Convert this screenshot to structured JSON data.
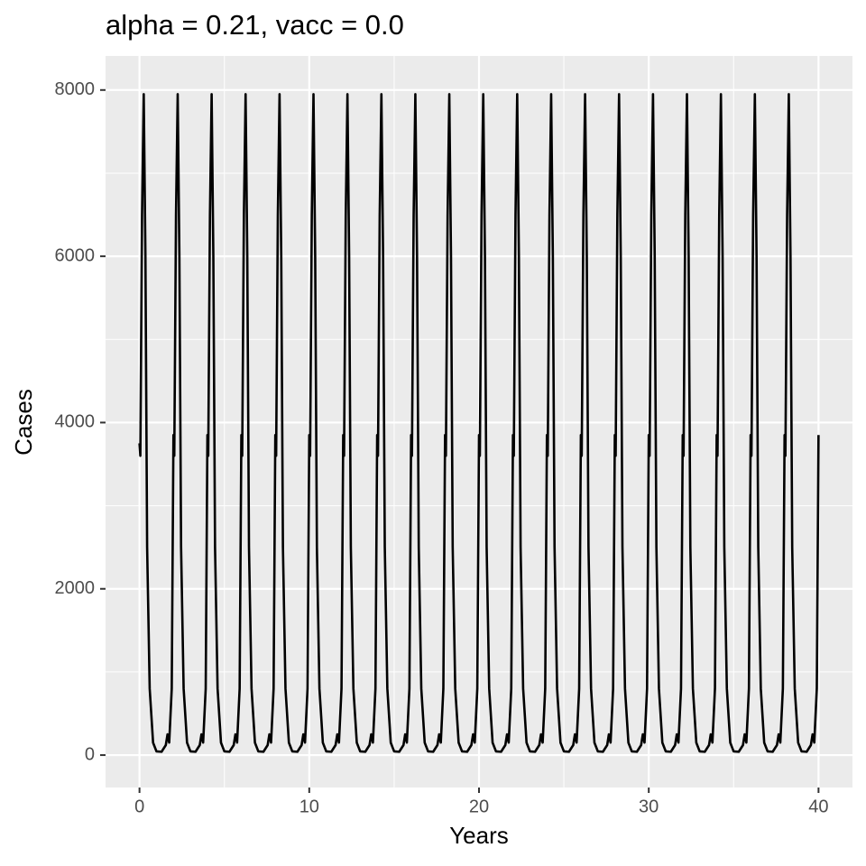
{
  "chart_data": {
    "type": "line",
    "title": "alpha = 0.21, vacc = 0.0",
    "x_label": "Years",
    "y_label": "Cases",
    "xlim": [
      -2,
      42
    ],
    "xticks": [
      0,
      10,
      20,
      30,
      40
    ],
    "ylim": [
      -390,
      8410
    ],
    "yticks": [
      0,
      2000,
      4000,
      6000,
      8000
    ],
    "grid": true,
    "minor_grid": true,
    "series": [
      {
        "color": "#000000",
        "x": [
          0,
          0.05,
          0.15,
          0.25,
          0.35,
          0.45,
          0.6,
          0.8,
          1,
          1.3,
          1.55,
          1.65,
          1.75,
          1.9,
          2,
          2.05,
          2.15,
          2.25,
          2.35,
          2.45,
          2.6,
          2.8,
          3,
          3.3,
          3.55,
          3.65,
          3.75,
          3.9,
          4,
          4.05,
          4.15,
          4.25,
          4.35,
          4.45,
          4.6,
          4.8,
          5,
          5.3,
          5.55,
          5.65,
          5.75,
          5.9,
          6,
          6.05,
          6.15,
          6.25,
          6.35,
          6.45,
          6.6,
          6.8,
          7,
          7.3,
          7.55,
          7.65,
          7.75,
          7.9,
          8,
          8.05,
          8.15,
          8.25,
          8.35,
          8.45,
          8.6,
          8.8,
          9,
          9.3,
          9.55,
          9.65,
          9.75,
          9.9,
          10,
          10.05,
          10.15,
          10.25,
          10.35,
          10.45,
          10.6,
          10.8,
          11,
          11.3,
          11.55,
          11.65,
          11.75,
          11.9,
          12,
          12.05,
          12.15,
          12.25,
          12.35,
          12.45,
          12.6,
          12.8,
          13,
          13.3,
          13.55,
          13.65,
          13.75,
          13.9,
          14,
          14.05,
          14.15,
          14.25,
          14.35,
          14.45,
          14.6,
          14.8,
          15,
          15.3,
          15.55,
          15.65,
          15.75,
          15.9,
          16,
          16.05,
          16.15,
          16.25,
          16.35,
          16.45,
          16.6,
          16.8,
          17,
          17.3,
          17.55,
          17.65,
          17.75,
          17.9,
          18,
          18.05,
          18.15,
          18.25,
          18.35,
          18.45,
          18.6,
          18.8,
          19,
          19.3,
          19.55,
          19.65,
          19.75,
          19.9,
          20,
          20.05,
          20.15,
          20.25,
          20.35,
          20.45,
          20.6,
          20.8,
          21,
          21.3,
          21.55,
          21.65,
          21.75,
          21.9,
          22,
          22.05,
          22.15,
          22.25,
          22.35,
          22.45,
          22.6,
          22.8,
          23,
          23.3,
          23.55,
          23.65,
          23.75,
          23.9,
          24,
          24.05,
          24.15,
          24.25,
          24.35,
          24.45,
          24.6,
          24.8,
          25,
          25.3,
          25.55,
          25.65,
          25.75,
          25.9,
          26,
          26.05,
          26.15,
          26.25,
          26.35,
          26.45,
          26.6,
          26.8,
          27,
          27.3,
          27.55,
          27.65,
          27.75,
          27.9,
          28,
          28.05,
          28.15,
          28.25,
          28.35,
          28.45,
          28.6,
          28.8,
          29,
          29.3,
          29.55,
          29.65,
          29.75,
          29.9,
          30,
          30.05,
          30.15,
          30.25,
          30.35,
          30.45,
          30.6,
          30.8,
          31,
          31.3,
          31.55,
          31.65,
          31.75,
          31.9,
          32,
          32.05,
          32.15,
          32.25,
          32.35,
          32.45,
          32.6,
          32.8,
          33,
          33.3,
          33.55,
          33.65,
          33.75,
          33.9,
          34,
          34.05,
          34.15,
          34.25,
          34.35,
          34.45,
          34.6,
          34.8,
          35,
          35.3,
          35.55,
          35.65,
          35.75,
          35.9,
          36,
          36.05,
          36.15,
          36.25,
          36.35,
          36.45,
          36.6,
          36.8,
          37,
          37.3,
          37.55,
          37.65,
          37.75,
          37.9,
          38,
          38.05,
          38.15,
          38.25,
          38.35,
          38.45,
          38.6,
          38.8,
          39,
          39.3,
          39.55,
          39.65,
          39.75,
          39.9,
          40
        ],
        "values": [
          3750,
          3600,
          6500,
          7950,
          6000,
          2500,
          800,
          150,
          45,
          40,
          120,
          250,
          150,
          800,
          3850,
          3600,
          6500,
          7950,
          6000,
          2500,
          800,
          150,
          45,
          40,
          120,
          250,
          150,
          800,
          3850,
          3600,
          6500,
          7950,
          6000,
          2500,
          800,
          150,
          45,
          40,
          120,
          250,
          150,
          800,
          3850,
          3600,
          6500,
          7950,
          6000,
          2500,
          800,
          150,
          45,
          40,
          120,
          250,
          150,
          800,
          3850,
          3600,
          6500,
          7950,
          6000,
          2500,
          800,
          150,
          45,
          40,
          120,
          250,
          150,
          800,
          3850,
          3600,
          6500,
          7950,
          6000,
          2500,
          800,
          150,
          45,
          40,
          120,
          250,
          150,
          800,
          3850,
          3600,
          6500,
          7950,
          6000,
          2500,
          800,
          150,
          45,
          40,
          120,
          250,
          150,
          800,
          3850,
          3600,
          6500,
          7950,
          6000,
          2500,
          800,
          150,
          45,
          40,
          120,
          250,
          150,
          800,
          3850,
          3600,
          6500,
          7950,
          6000,
          2500,
          800,
          150,
          45,
          40,
          120,
          250,
          150,
          800,
          3850,
          3600,
          6500,
          7950,
          6000,
          2500,
          800,
          150,
          45,
          40,
          120,
          250,
          150,
          800,
          3850,
          3600,
          6500,
          7950,
          6000,
          2500,
          800,
          150,
          45,
          40,
          120,
          250,
          150,
          800,
          3850,
          3600,
          6500,
          7950,
          6000,
          2500,
          800,
          150,
          45,
          40,
          120,
          250,
          150,
          800,
          3850,
          3600,
          6500,
          7950,
          6000,
          2500,
          800,
          150,
          45,
          40,
          120,
          250,
          150,
          800,
          3850,
          3600,
          6500,
          7950,
          6000,
          2500,
          800,
          150,
          45,
          40,
          120,
          250,
          150,
          800,
          3850,
          3600,
          6500,
          7950,
          6000,
          2500,
          800,
          150,
          45,
          40,
          120,
          250,
          150,
          800,
          3850,
          3600,
          6500,
          7950,
          6000,
          2500,
          800,
          150,
          45,
          40,
          120,
          250,
          150,
          800,
          3850,
          3600,
          6500,
          7950,
          6000,
          2500,
          800,
          150,
          45,
          40,
          120,
          250,
          150,
          800,
          3850,
          3600,
          6500,
          7950,
          6000,
          2500,
          800,
          150,
          45,
          40,
          120,
          250,
          150,
          800,
          3850,
          3600,
          6500,
          7950,
          6000,
          2500,
          800,
          150,
          45,
          40,
          120,
          250,
          150,
          800,
          3850,
          3600,
          6500,
          7950,
          6000,
          2500,
          800,
          150,
          45,
          40,
          120,
          250,
          150,
          800,
          3850
        ]
      }
    ]
  }
}
